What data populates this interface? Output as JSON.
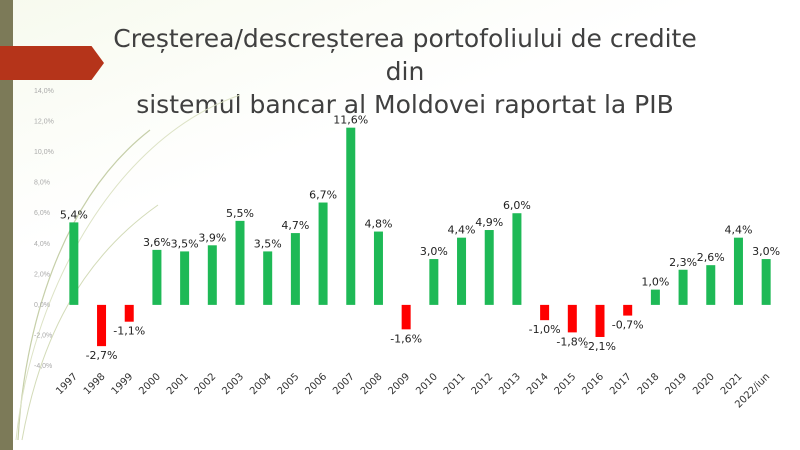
{
  "slide": {
    "title_line1": "Creșterea/descreșterea portofoliului de credite din",
    "title_line2": "sistemul bancar al Moldovei raportat la PIB"
  },
  "colors": {
    "positive": "#1eb956",
    "negative": "#ff0000",
    "banner": "#b5341a",
    "strip": "#7c7a58"
  },
  "chart_data": {
    "type": "bar",
    "title": "Creșterea/descreșterea portofoliului de credite din sistemul bancar al Moldovei raportat la PIB",
    "categories": [
      "1997",
      "1998",
      "1999",
      "2000",
      "2001",
      "2002",
      "2003",
      "2004",
      "2005",
      "2006",
      "2007",
      "2008",
      "2009",
      "2010",
      "2011",
      "2012",
      "2013",
      "2014",
      "2015",
      "2016",
      "2017",
      "2018",
      "2019",
      "2020",
      "2021",
      "2022/iun"
    ],
    "values": [
      5.4,
      -2.7,
      -1.1,
      3.6,
      3.5,
      3.9,
      5.5,
      3.5,
      4.7,
      6.7,
      11.6,
      4.8,
      -1.6,
      3.0,
      4.4,
      4.9,
      6.0,
      -1.0,
      -1.8,
      -2.1,
      -0.7,
      1.0,
      2.3,
      2.6,
      4.4,
      3.0
    ],
    "data_labels": [
      "5,4%",
      "-2,7%",
      "-1,1%",
      "3,6%",
      "3,5%",
      "3,9%",
      "5,5%",
      "3,5%",
      "4,7%",
      "6,7%",
      "11,6%",
      "4,8%",
      "-1,6%",
      "3,0%",
      "4,4%",
      "4,9%",
      "6,0%",
      "-1,0%",
      "-1,8%",
      "-2,1%",
      "-0,7%",
      "1,0%",
      "2,3%",
      "2,6%",
      "4,4%",
      "3,0%"
    ],
    "y_ticks": [
      -4,
      -2,
      0,
      2,
      4,
      6,
      8,
      10,
      12,
      14
    ],
    "y_tick_labels": [
      "-4,0%",
      "-2,0%",
      "0,0%",
      "2,0%",
      "4,0%",
      "6,0%",
      "8,0%",
      "10,0%",
      "12,0%",
      "14,0%"
    ],
    "ylim": [
      -4,
      14
    ],
    "xlabel": "",
    "ylabel": "",
    "grid": false,
    "legend": "none"
  }
}
